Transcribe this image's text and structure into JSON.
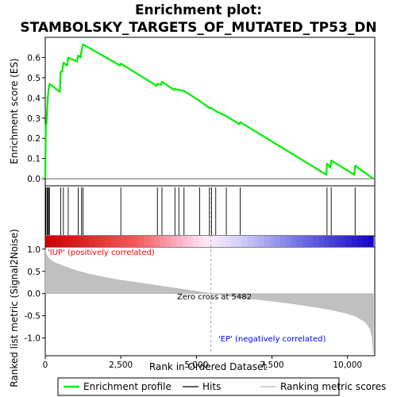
{
  "chart_data": {
    "type": "line",
    "title_line1": "Enrichment plot:",
    "title_line2": "STAMBOLSKY_TARGETS_OF_MUTATED_TP53_DN",
    "xlabel": "Rank in Ordered Dataset",
    "ylabel_top": "Enrichment score (ES)",
    "ylabel_bottom": "Ranked list metric (Signal2Noise)",
    "x_range": [
      0,
      10900
    ],
    "es_ylim": [
      -0.035,
      0.7
    ],
    "metric_ylim": [
      -1.4,
      1.05
    ],
    "x_ticks": [
      {
        "value": 0,
        "label": "0"
      },
      {
        "value": 2500,
        "label": "2,500"
      },
      {
        "value": 5000,
        "label": "5,000"
      },
      {
        "value": 7500,
        "label": "7,500"
      },
      {
        "value": 10000,
        "label": "10,000"
      }
    ],
    "es_ticks": [
      {
        "value": 0.0,
        "label": "0.0"
      },
      {
        "value": 0.1,
        "label": "0.1"
      },
      {
        "value": 0.2,
        "label": "0.2"
      },
      {
        "value": 0.3,
        "label": "0.3"
      },
      {
        "value": 0.4,
        "label": "0.4"
      },
      {
        "value": 0.5,
        "label": "0.5"
      },
      {
        "value": 0.6,
        "label": "0.6"
      }
    ],
    "metric_ticks": [
      {
        "value": 1.0,
        "label": "1.0"
      },
      {
        "value": 0.5,
        "label": "0.5"
      },
      {
        "value": 0.0,
        "label": "0.0"
      },
      {
        "value": -0.5,
        "label": "-0.5"
      },
      {
        "value": -1.0,
        "label": "-1.0"
      }
    ],
    "series": [
      {
        "name": "Enrichment profile",
        "color": "#00ee00",
        "x": [
          0,
          20,
          40,
          60,
          85,
          110,
          140,
          480,
          510,
          560,
          600,
          720,
          760,
          1050,
          1090,
          1170,
          1200,
          1250,
          2480,
          2500,
          3680,
          3710,
          3830,
          3860,
          4260,
          4290,
          4390,
          4420,
          4560,
          4590,
          5110,
          5430,
          5500,
          5640,
          5990,
          6420,
          6450,
          9300,
          9320,
          9440,
          9460,
          10220,
          10250,
          10850
        ],
        "y": [
          0.0,
          0.27,
          0.27,
          0.34,
          0.4,
          0.44,
          0.47,
          0.43,
          0.53,
          0.53,
          0.575,
          0.56,
          0.6,
          0.58,
          0.61,
          0.6,
          0.635,
          0.665,
          0.56,
          0.57,
          0.46,
          0.47,
          0.465,
          0.48,
          0.44,
          0.445,
          0.44,
          0.44,
          0.435,
          0.435,
          0.385,
          0.35,
          0.35,
          0.335,
          0.31,
          0.27,
          0.28,
          0.02,
          0.075,
          0.055,
          0.09,
          0.02,
          0.065,
          0.0
        ]
      }
    ],
    "hits": [
      20,
      60,
      85,
      110,
      140,
      510,
      600,
      760,
      1090,
      1200,
      1250,
      2500,
      3710,
      3860,
      4290,
      4420,
      4590,
      5110,
      5430,
      5500,
      5640,
      5990,
      6450,
      9320,
      9460,
      10250
    ],
    "metric_profile": [
      {
        "rank": 0,
        "value": 1.0
      },
      {
        "rank": 30,
        "value": 0.9
      },
      {
        "rank": 100,
        "value": 0.8
      },
      {
        "rank": 300,
        "value": 0.7
      },
      {
        "rank": 600,
        "value": 0.62
      },
      {
        "rank": 1000,
        "value": 0.52
      },
      {
        "rank": 1500,
        "value": 0.43
      },
      {
        "rank": 2000,
        "value": 0.36
      },
      {
        "rank": 2500,
        "value": 0.3
      },
      {
        "rank": 3000,
        "value": 0.25
      },
      {
        "rank": 3500,
        "value": 0.2
      },
      {
        "rank": 4000,
        "value": 0.15
      },
      {
        "rank": 4500,
        "value": 0.1
      },
      {
        "rank": 5000,
        "value": 0.05
      },
      {
        "rank": 5482,
        "value": 0.0
      },
      {
        "rank": 6000,
        "value": -0.05
      },
      {
        "rank": 6500,
        "value": -0.09
      },
      {
        "rank": 7000,
        "value": -0.13
      },
      {
        "rank": 7500,
        "value": -0.17
      },
      {
        "rank": 8000,
        "value": -0.21
      },
      {
        "rank": 8500,
        "value": -0.26
      },
      {
        "rank": 9000,
        "value": -0.31
      },
      {
        "rank": 9500,
        "value": -0.37
      },
      {
        "rank": 10000,
        "value": -0.45
      },
      {
        "rank": 10300,
        "value": -0.52
      },
      {
        "rank": 10600,
        "value": -0.65
      },
      {
        "rank": 10750,
        "value": -0.8
      },
      {
        "rank": 10820,
        "value": -1.0
      },
      {
        "rank": 10850,
        "value": -1.35
      }
    ],
    "zero_cross_rank": 5482,
    "annotations": {
      "zero_cross": "Zero cross at 5482",
      "positive": "'IUP' (positively correlated)",
      "negative": "'EP' (negatively correlated)"
    },
    "colors": {
      "positive_label": "#ff0000",
      "negative_label": "#0000ff",
      "metric_fill": "#c0c0c0",
      "hit_line": "#000000"
    },
    "legend_position": "bottom",
    "legend": [
      {
        "label": "Enrichment profile",
        "color": "#00ee00"
      },
      {
        "label": "Hits",
        "color": "#000000"
      },
      {
        "label": "Ranking metric scores",
        "color": "#c0c0c0"
      }
    ]
  }
}
